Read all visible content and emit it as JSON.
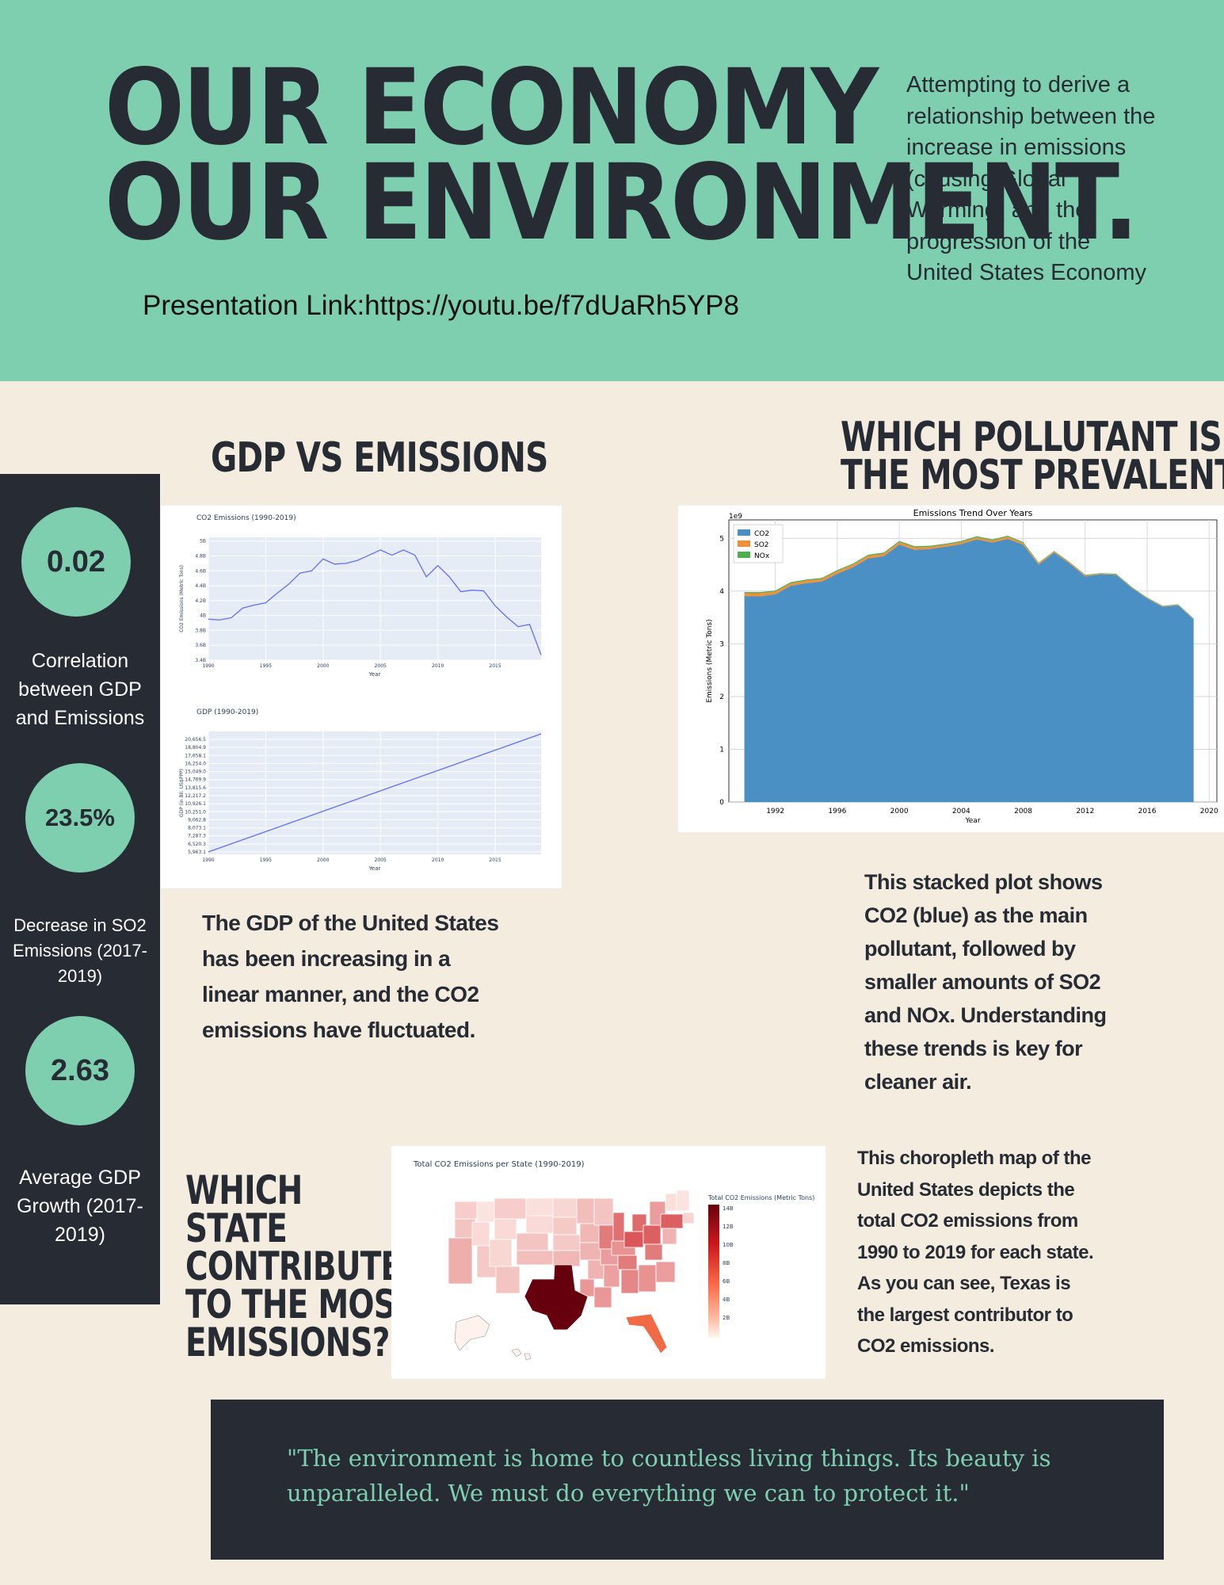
{
  "header": {
    "title_line1": "OUR ECONOMY",
    "title_line2": "OUR ENVIRONMENT.",
    "intro": "Attempting to derive a relationship between the increase in emissions (causing Global Warming) and the progression of the United States Economy",
    "link": "Presentation Link:https://youtu.be/f7dUaRh5YP8"
  },
  "stats": [
    {
      "value": "0.02",
      "label": "Correlation between GDP and Emissions"
    },
    {
      "value": "23.5%",
      "label": "Decrease in SO2 Emissions (2017-2019)"
    },
    {
      "value": "2.63",
      "label": "Average GDP Growth (2017-2019)"
    }
  ],
  "sections": {
    "gdp_heading": "GDP VS EMISSIONS",
    "pollutant_heading_line1": "WHICH POLLUTANT IS",
    "pollutant_heading_line2": "THE MOST PREVALENT?",
    "state_heading": [
      "WHICH",
      "STATE",
      "CONTRIBUTES",
      "TO THE MOST",
      "EMISSIONS?"
    ],
    "gdp_text": "The GDP of the United States has been increasing in a linear manner, and the CO2 emissions have fluctuated.",
    "stacked_text": "This stacked plot shows CO2 (blue) as the main pollutant, followed by smaller amounts of SO2 and NOx. Understanding these trends is key for cleaner air.",
    "map_text": "This choropleth map of the United States depicts the total CO2 emissions from 1990 to 2019 for each state. As you can see, Texas is the largest contributor to CO2 emissions."
  },
  "quote": "\"The environment is home to countless living things. Its beauty is unparalleled. We must do everything we can to protect it.\"",
  "colors": {
    "accent": "#7ecfaf",
    "dark": "#272b33",
    "background": "#f3ecdf",
    "co2": "#4a90c4",
    "so2": "#f0913a",
    "nox": "#4caf50",
    "plotly_line": "#636efa"
  },
  "chart_data": [
    {
      "type": "line",
      "title": "CO2 Emissions (1990-2019)",
      "xlabel": "Year",
      "ylabel": "CO2 Emissions (Metric Tons)",
      "x": [
        1990,
        1991,
        1992,
        1993,
        1994,
        1995,
        1996,
        1997,
        1998,
        1999,
        2000,
        2001,
        2002,
        2003,
        2004,
        2005,
        2006,
        2007,
        2008,
        2009,
        2010,
        2011,
        2012,
        2013,
        2014,
        2015,
        2016,
        2017,
        2018,
        2019
      ],
      "values": [
        3.95,
        3.94,
        3.97,
        4.1,
        4.14,
        4.17,
        4.3,
        4.42,
        4.57,
        4.6,
        4.76,
        4.69,
        4.7,
        4.74,
        4.81,
        4.88,
        4.81,
        4.88,
        4.81,
        4.52,
        4.67,
        4.52,
        4.32,
        4.34,
        4.33,
        4.13,
        3.98,
        3.85,
        3.88,
        3.47
      ],
      "xticks": [
        "1990",
        "1995",
        "2000",
        "2005",
        "2010",
        "2015"
      ],
      "yticks": [
        "5B",
        "4.8B",
        "4.6B",
        "4.4B",
        "4.2B",
        "4B",
        "3.8B",
        "3.6B",
        "3.4B"
      ],
      "ylim": [
        3.4,
        5.05
      ]
    },
    {
      "type": "line",
      "title": "GDP (1990-2019)",
      "xlabel": "Year",
      "ylabel": "GDP (in Bil. US$PPP)",
      "x": [
        1990,
        2019
      ],
      "values": [
        5963.1,
        20656.5
      ],
      "xticks": [
        "1990",
        "1995",
        "2000",
        "2005",
        "2010",
        "2015"
      ],
      "yticks": [
        "20,656.5",
        "18,804.9",
        "17,658.1",
        "16,254.0",
        "15,049.0",
        "14,769.9",
        "13,815.6",
        "12,217.2",
        "10,926.1",
        "10,251.0",
        "9,062.8",
        "8,073.1",
        "7,287.3",
        "6,520.3",
        "5,963.1"
      ]
    },
    {
      "type": "area",
      "title": "Emissions Trend Over Years",
      "xlabel": "Year",
      "ylabel": "Emissions (Metric Tons)",
      "scale_label": "1e9",
      "legend_position": "top-left",
      "grid": true,
      "x": [
        1990,
        1991,
        1992,
        1993,
        1994,
        1995,
        1996,
        1997,
        1998,
        1999,
        2000,
        2001,
        2002,
        2003,
        2004,
        2005,
        2006,
        2007,
        2008,
        2009,
        2010,
        2011,
        2012,
        2013,
        2014,
        2015,
        2016,
        2017,
        2018,
        2019
      ],
      "series": [
        {
          "name": "CO2",
          "values": [
            3.9,
            3.9,
            3.94,
            4.1,
            4.15,
            4.18,
            4.33,
            4.45,
            4.62,
            4.66,
            4.88,
            4.78,
            4.8,
            4.84,
            4.89,
            4.98,
            4.92,
            4.99,
            4.88,
            4.5,
            4.73,
            4.52,
            4.28,
            4.32,
            4.31,
            4.06,
            3.86,
            3.7,
            3.73,
            3.46
          ]
        },
        {
          "name": "SO2",
          "values": [
            0.06,
            0.06,
            0.05,
            0.05,
            0.05,
            0.05,
            0.05,
            0.05,
            0.05,
            0.05,
            0.05,
            0.05,
            0.04,
            0.04,
            0.04,
            0.04,
            0.04,
            0.04,
            0.03,
            0.03,
            0.02,
            0.02,
            0.02,
            0.01,
            0.01,
            0.01,
            0.01,
            0.01,
            0.01,
            0.01
          ]
        },
        {
          "name": "NOx",
          "values": [
            0.02,
            0.02,
            0.02,
            0.02,
            0.02,
            0.02,
            0.02,
            0.02,
            0.02,
            0.02,
            0.02,
            0.02,
            0.02,
            0.02,
            0.02,
            0.02,
            0.02,
            0.02,
            0.02,
            0.01,
            0.01,
            0.01,
            0.01,
            0.01,
            0.01,
            0.01,
            0.01,
            0.01,
            0.01,
            0.01
          ]
        }
      ],
      "xticks": [
        1992,
        1996,
        2000,
        2004,
        2008,
        2012,
        2016,
        2020
      ],
      "yticks": [
        0,
        1,
        2,
        3,
        4,
        5
      ],
      "xlim": [
        1989,
        2020.5
      ],
      "ylim": [
        0,
        5.35
      ]
    },
    {
      "type": "heatmap",
      "title": "Total CO2 Emissions per State (1990-2019)",
      "colorbar_title": "Total CO2 Emissions (Metric Tons)",
      "colorbar_ticks": [
        "14B",
        "12B",
        "10B",
        "8B",
        "6B",
        "4B",
        "2B"
      ],
      "largest_state": "Texas"
    }
  ]
}
